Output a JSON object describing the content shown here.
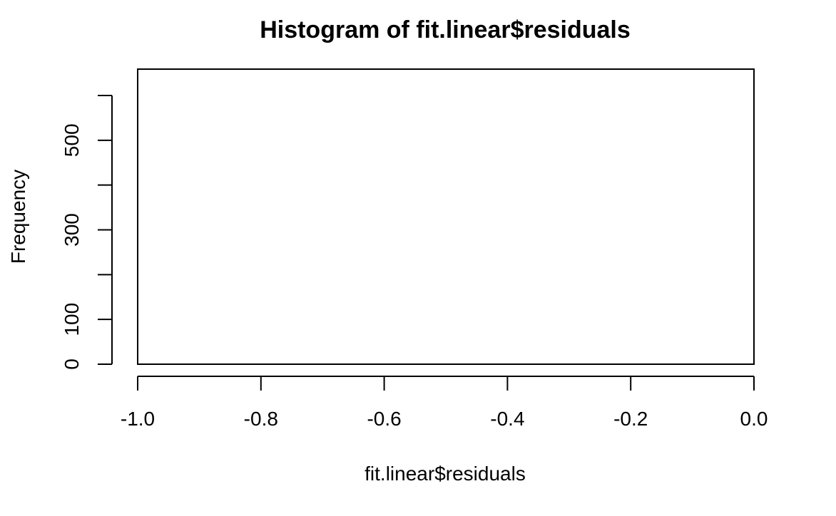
{
  "chart_data": {
    "type": "bar",
    "title": "Histogram of fit.linear$residuals",
    "xlabel": "fit.linear$residuals",
    "ylabel": "Frequency",
    "xlim": [
      -1.0,
      0.0
    ],
    "ylim": [
      0,
      600
    ],
    "x_ticks": [
      -1.0,
      -0.8,
      -0.6,
      -0.4,
      -0.2,
      0.0
    ],
    "x_tick_labels": [
      "-1.0",
      "-0.8",
      "-0.6",
      "-0.4",
      "-0.2",
      "0.0"
    ],
    "y_ticks": [
      0,
      100,
      200,
      300,
      400,
      500,
      600
    ],
    "y_tick_labels": [
      "0",
      "100",
      "",
      "300",
      "",
      "500",
      ""
    ],
    "grid": false,
    "box": true,
    "bars": [],
    "colors": {
      "foreground": "#000000",
      "background": "#ffffff"
    }
  }
}
